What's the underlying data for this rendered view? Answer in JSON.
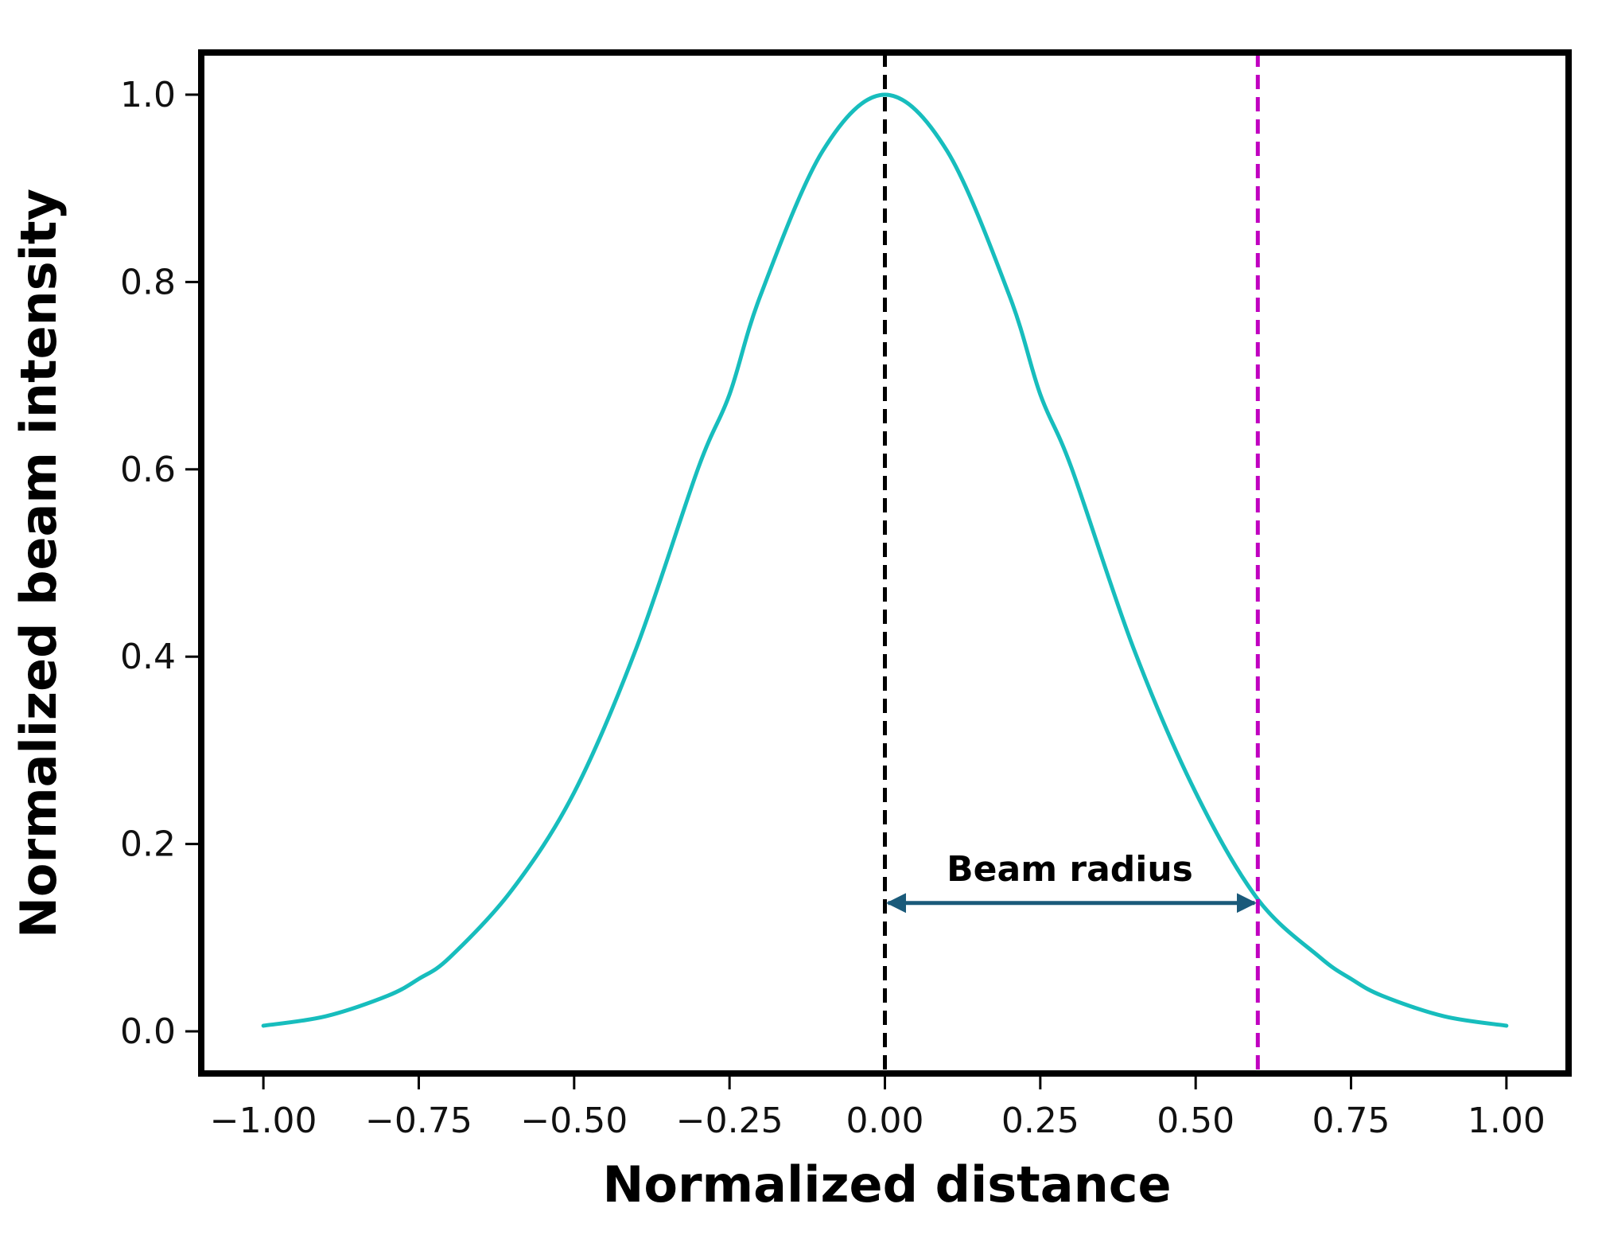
{
  "chart_data": {
    "type": "line",
    "title": "",
    "xlabel": "Normalized distance",
    "ylabel": "Normalized beam intensity",
    "xlim": [
      -1.1,
      1.1
    ],
    "ylim": [
      -0.045,
      1.045
    ],
    "x_ticks": [
      -1.0,
      -0.75,
      -0.5,
      -0.25,
      0.0,
      0.25,
      0.5,
      0.75,
      1.0
    ],
    "x_tick_labels": [
      "−1.00",
      "−0.75",
      "−0.50",
      "−0.25",
      "0.00",
      "0.25",
      "0.50",
      "0.75",
      "1.00"
    ],
    "y_ticks": [
      0.0,
      0.2,
      0.4,
      0.6,
      0.8,
      1.0
    ],
    "y_tick_labels": [
      "0.0",
      "0.2",
      "0.4",
      "0.6",
      "0.8",
      "1.0"
    ],
    "grid": false,
    "legend": "none",
    "series": [
      {
        "color": "#17BDBD",
        "x": [
          -1.0,
          -0.9,
          -0.8,
          -0.75,
          -0.7,
          -0.6,
          -0.5,
          -0.4,
          -0.3,
          -0.25,
          -0.2,
          -0.1,
          0.0,
          0.1,
          0.2,
          0.25,
          0.3,
          0.4,
          0.5,
          0.6,
          0.7,
          0.75,
          0.8,
          0.9,
          1.0
        ],
        "y": [
          0.006,
          0.016,
          0.038,
          0.056,
          0.079,
          0.151,
          0.255,
          0.409,
          0.602,
          0.68,
          0.786,
          0.94,
          1.0,
          0.94,
          0.786,
          0.68,
          0.602,
          0.409,
          0.255,
          0.141,
          0.079,
          0.056,
          0.038,
          0.016,
          0.006
        ]
      }
    ],
    "vertical_lines": [
      {
        "x": 0.0,
        "color": "#000000",
        "style": "dashed"
      },
      {
        "x": 0.6,
        "color": "#C000C0",
        "style": "dashed"
      }
    ],
    "annotation": {
      "text": "Beam radius",
      "x_start": 0.0,
      "x_end": 0.6,
      "y": 0.137,
      "color": "#1A5A7A",
      "style": "double-headed arrow"
    }
  }
}
